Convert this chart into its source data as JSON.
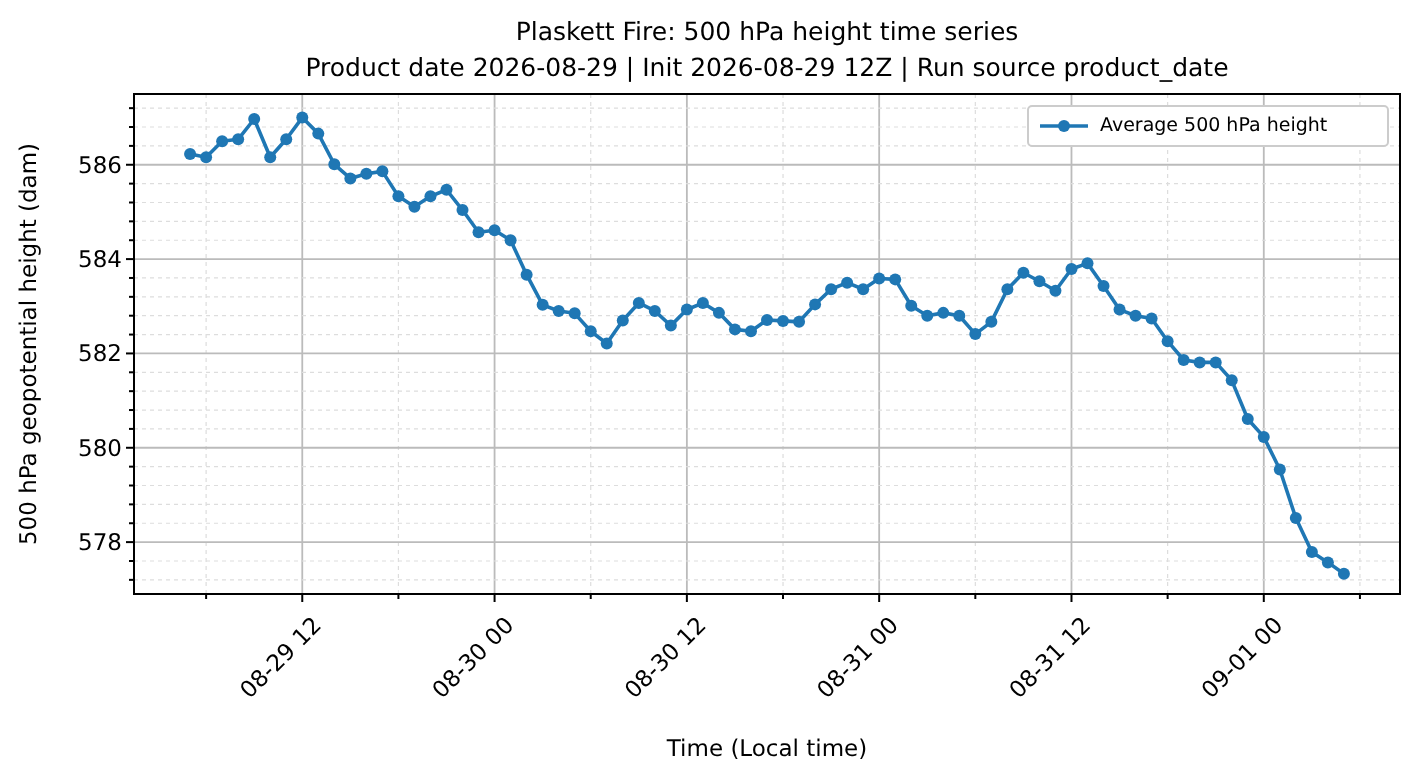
{
  "chart_data": {
    "type": "line",
    "title": "Plaskett Fire: 500 hPa height time series",
    "subtitle": "Product date 2026-08-29 | Init 2026-08-29 12Z | Run source product_date",
    "xlabel": "Time (Local time)",
    "ylabel": "500 hPa geopotential height (dam)",
    "x": [
      "2026-08-29T05:00",
      "2026-08-29T06:00",
      "2026-08-29T07:00",
      "2026-08-29T08:00",
      "2026-08-29T09:00",
      "2026-08-29T10:00",
      "2026-08-29T11:00",
      "2026-08-29T12:00",
      "2026-08-29T13:00",
      "2026-08-29T14:00",
      "2026-08-29T15:00",
      "2026-08-29T16:00",
      "2026-08-29T17:00",
      "2026-08-29T18:00",
      "2026-08-29T19:00",
      "2026-08-29T20:00",
      "2026-08-29T21:00",
      "2026-08-29T22:00",
      "2026-08-29T23:00",
      "2026-08-30T00:00",
      "2026-08-30T01:00",
      "2026-08-30T02:00",
      "2026-08-30T03:00",
      "2026-08-30T04:00",
      "2026-08-30T05:00",
      "2026-08-30T06:00",
      "2026-08-30T07:00",
      "2026-08-30T08:00",
      "2026-08-30T09:00",
      "2026-08-30T10:00",
      "2026-08-30T11:00",
      "2026-08-30T12:00",
      "2026-08-30T13:00",
      "2026-08-30T14:00",
      "2026-08-30T15:00",
      "2026-08-30T16:00",
      "2026-08-30T17:00",
      "2026-08-30T18:00",
      "2026-08-30T19:00",
      "2026-08-30T20:00",
      "2026-08-30T21:00",
      "2026-08-30T22:00",
      "2026-08-30T23:00",
      "2026-08-31T00:00",
      "2026-08-31T01:00",
      "2026-08-31T02:00",
      "2026-08-31T03:00",
      "2026-08-31T04:00",
      "2026-08-31T05:00",
      "2026-08-31T06:00",
      "2026-08-31T07:00",
      "2026-08-31T08:00",
      "2026-08-31T09:00",
      "2026-08-31T10:00",
      "2026-08-31T11:00",
      "2026-08-31T12:00",
      "2026-08-31T13:00",
      "2026-08-31T14:00",
      "2026-08-31T15:00",
      "2026-08-31T16:00",
      "2026-08-31T17:00",
      "2026-08-31T18:00",
      "2026-08-31T19:00",
      "2026-08-31T20:00",
      "2026-08-31T21:00",
      "2026-08-31T22:00",
      "2026-08-31T23:00",
      "2026-09-01T00:00",
      "2026-09-01T01:00",
      "2026-09-01T02:00",
      "2026-09-01T03:00",
      "2026-09-01T04:00",
      "2026-09-01T05:00"
    ],
    "series": [
      {
        "name": "Average 500 hPa height",
        "color": "#1f77b4",
        "values": [
          586.23,
          586.16,
          586.5,
          586.54,
          586.97,
          586.16,
          586.54,
          587.0,
          586.66,
          586.01,
          585.71,
          585.81,
          585.86,
          585.33,
          585.11,
          585.33,
          585.47,
          585.04,
          584.57,
          584.61,
          584.4,
          583.67,
          583.03,
          582.9,
          582.85,
          582.47,
          582.21,
          582.7,
          583.07,
          582.9,
          582.59,
          582.93,
          583.07,
          582.86,
          582.51,
          582.47,
          582.71,
          582.69,
          582.67,
          583.04,
          583.36,
          583.5,
          583.36,
          583.59,
          583.57,
          583.01,
          582.8,
          582.86,
          582.8,
          582.41,
          582.67,
          583.36,
          583.71,
          583.53,
          583.33,
          583.79,
          583.91,
          583.43,
          582.93,
          582.8,
          582.74,
          582.26,
          581.86,
          581.81,
          581.81,
          581.43,
          580.61,
          580.23,
          579.54,
          578.51,
          577.79,
          577.57,
          577.33
        ]
      }
    ],
    "xlim": [
      "2026-08-29T01:30",
      "2026-09-01T08:30"
    ],
    "ylim": [
      576.9,
      587.5
    ],
    "xticks": [
      {
        "value": "2026-08-29T06:00",
        "label": null
      },
      {
        "value": "2026-08-29T12:00",
        "label": "08-29 12"
      },
      {
        "value": "2026-08-29T18:00",
        "label": null
      },
      {
        "value": "2026-08-30T00:00",
        "label": "08-30 00"
      },
      {
        "value": "2026-08-30T06:00",
        "label": null
      },
      {
        "value": "2026-08-30T12:00",
        "label": "08-30 12"
      },
      {
        "value": "2026-08-30T18:00",
        "label": null
      },
      {
        "value": "2026-08-31T00:00",
        "label": "08-31 00"
      },
      {
        "value": "2026-08-31T06:00",
        "label": null
      },
      {
        "value": "2026-08-31T12:00",
        "label": "08-31 12"
      },
      {
        "value": "2026-08-31T18:00",
        "label": null
      },
      {
        "value": "2026-09-01T00:00",
        "label": "09-01 00"
      },
      {
        "value": "2026-09-01T06:00",
        "label": null
      }
    ],
    "yticks": [
      {
        "value": 577.2,
        "label": null
      },
      {
        "value": 577.6,
        "label": null
      },
      578,
      {
        "value": 578.4,
        "label": null
      },
      {
        "value": 578.8,
        "label": null
      },
      {
        "value": 579.2,
        "label": null
      },
      {
        "value": 579.6,
        "label": null
      },
      580,
      {
        "value": 580.4,
        "label": null
      },
      {
        "value": 580.8,
        "label": null
      },
      {
        "value": 581.2,
        "label": null
      },
      {
        "value": 581.6,
        "label": null
      },
      582,
      {
        "value": 582.4,
        "label": null
      },
      {
        "value": 582.8,
        "label": null
      },
      {
        "value": 583.2,
        "label": null
      },
      {
        "value": 583.6,
        "label": null
      },
      584,
      {
        "value": 584.4,
        "label": null
      },
      {
        "value": 584.8,
        "label": null
      },
      {
        "value": 585.2,
        "label": null
      },
      {
        "value": 585.6,
        "label": null
      },
      586,
      {
        "value": 586.4,
        "label": null
      },
      {
        "value": 586.8,
        "label": null
      },
      {
        "value": 587.2,
        "label": null
      }
    ],
    "grid": true,
    "legend": "top right",
    "marker": "circle",
    "line_style": "solid"
  }
}
